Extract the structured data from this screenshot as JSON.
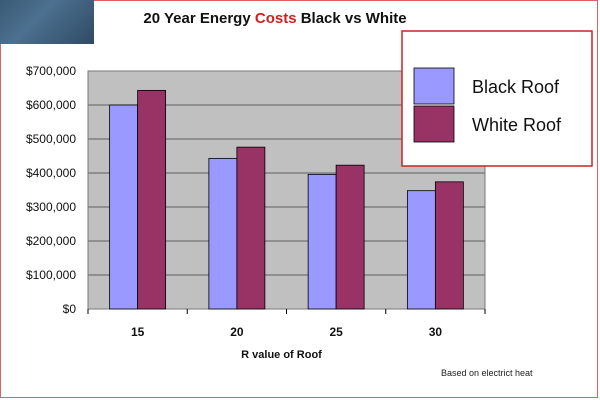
{
  "title": {
    "part1": "20 Year Energy ",
    "part2": "Costs",
    "part3": " Black vs White"
  },
  "colors": {
    "accent": "#d02020",
    "black_roof": "#9999ff",
    "white_roof": "#993366",
    "plot_bg": "#c0c0c0",
    "legend_border": "#cc2222"
  },
  "note": "Based on electrict heat",
  "chart_data": {
    "type": "bar",
    "title": "20 Year Energy Costs Black vs White",
    "xlabel": "R value of Roof",
    "ylabel": "",
    "categories": [
      "15",
      "20",
      "25",
      "30"
    ],
    "series": [
      {
        "name": "Black Roof",
        "values": [
          600000,
          443000,
          396000,
          348000
        ]
      },
      {
        "name": "White Roof",
        "values": [
          643000,
          476000,
          423000,
          374000
        ]
      }
    ],
    "ylim": [
      0,
      700000
    ],
    "yticks": [
      "$0",
      "$100,000",
      "$200,000",
      "$300,000",
      "$400,000",
      "$500,000",
      "$600,000",
      "$700,000"
    ],
    "grid": true,
    "legend_position": "top-right"
  }
}
